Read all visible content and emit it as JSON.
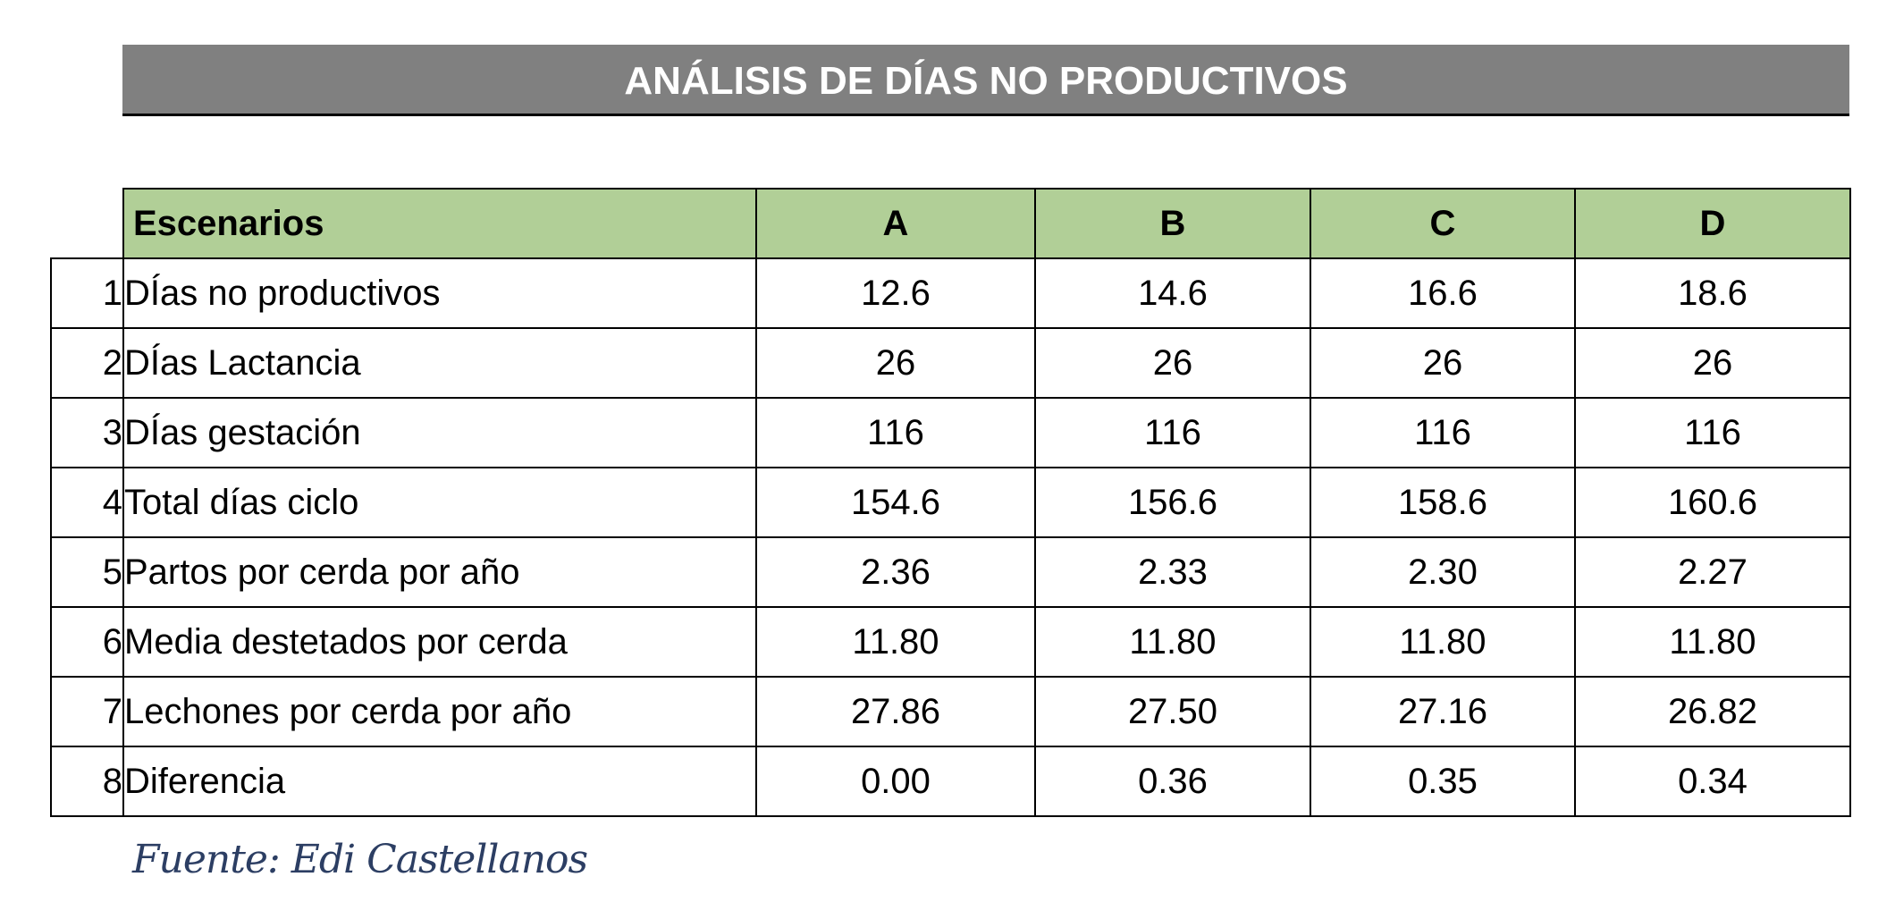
{
  "title": "ANÁLISIS DE DÍAS NO PRODUCTIVOS",
  "table": {
    "header_label": "Escenarios",
    "columns": [
      "A",
      "B",
      "C",
      "D"
    ],
    "rows": [
      {
        "num": "1",
        "label": "DÍas no productivos",
        "values": [
          "12.6",
          "14.6",
          "16.6",
          "18.6"
        ]
      },
      {
        "num": "2",
        "label": "DÍas Lactancia",
        "values": [
          "26",
          "26",
          "26",
          "26"
        ]
      },
      {
        "num": "3",
        "label": "DÍas gestación",
        "values": [
          "116",
          "116",
          "116",
          "116"
        ]
      },
      {
        "num": "4",
        "label": "Total días ciclo",
        "values": [
          "154.6",
          "156.6",
          "158.6",
          "160.6"
        ]
      },
      {
        "num": "5",
        "label": "Partos por cerda por año",
        "values": [
          "2.36",
          "2.33",
          "2.30",
          "2.27"
        ]
      },
      {
        "num": "6",
        "label": "Media destetados por cerda",
        "values": [
          "11.80",
          "11.80",
          "11.80",
          "11.80"
        ]
      },
      {
        "num": "7",
        "label": "Lechones por cerda por año",
        "values": [
          "27.86",
          "27.50",
          "27.16",
          "26.82"
        ]
      },
      {
        "num": "8",
        "label": "Diferencia",
        "values": [
          "0.00",
          "0.36",
          "0.35",
          "0.34"
        ]
      }
    ]
  },
  "source": "Fuente: Edi Castellanos",
  "colors": {
    "title_bar": "#808080",
    "header_fill": "#b1cf97",
    "source_text": "#2c3e63"
  }
}
